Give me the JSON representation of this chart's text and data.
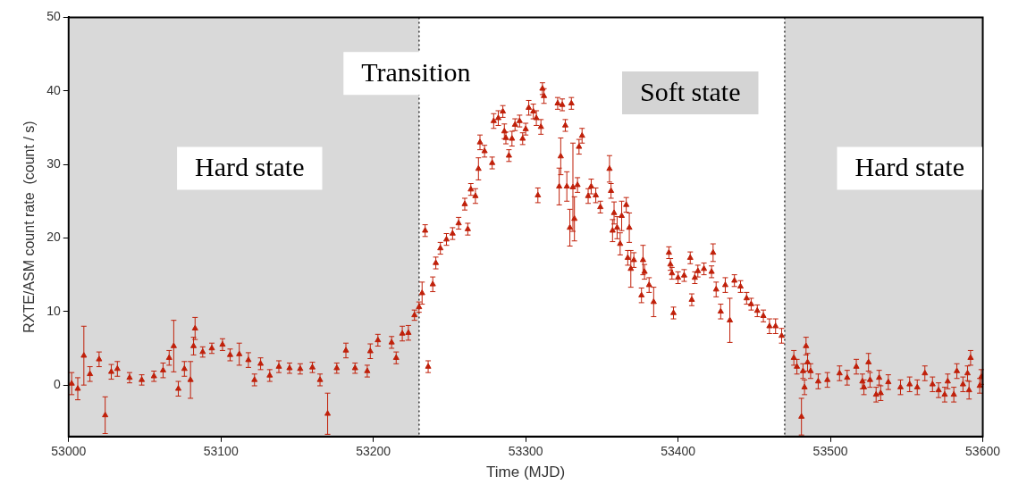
{
  "chart_data": {
    "type": "scatter",
    "xlabel": "Time (MJD)",
    "ylabel": "RXTE/ASM count rate  (count / s)",
    "xlim": [
      53000,
      53600
    ],
    "xticks": [
      53000,
      53100,
      53200,
      53300,
      53400,
      53500,
      53600
    ],
    "ylim": [
      -7,
      50
    ],
    "yticks": [
      0,
      10,
      20,
      30,
      40,
      50
    ],
    "grid": false,
    "marker": "triangle",
    "series": [
      {
        "color": "#c0200a",
        "x": [
          53002,
          53006,
          53010,
          53014,
          53020,
          53024,
          53028,
          53032,
          53040,
          53048,
          53056,
          53062,
          53066,
          53069,
          53072,
          53076,
          53080,
          53082,
          53083,
          53088,
          53094,
          53101,
          53106,
          53112,
          53118,
          53122,
          53126,
          53132,
          53138,
          53145,
          53152,
          53160,
          53165,
          53170,
          53176,
          53182,
          53188,
          53196,
          53198,
          53203,
          53212,
          53215,
          53219,
          53223,
          53227,
          53230,
          53232,
          53234,
          53236,
          53239,
          53241,
          53244,
          53248,
          53252,
          53256,
          53260,
          53262,
          53264,
          53267,
          53269,
          53270,
          53273,
          53278,
          53279,
          53282,
          53285,
          53286,
          53287,
          53289,
          53291,
          53293,
          53296,
          53298,
          53300,
          53302,
          53305,
          53307,
          53308,
          53310,
          53311,
          53312,
          53321,
          53322,
          53323,
          53324,
          53326,
          53327,
          53329,
          53330,
          53331,
          53332,
          53334,
          53335,
          53337,
          53341,
          53343,
          53346,
          53349,
          53355,
          53356,
          53357,
          53358,
          53360,
          53362,
          53363,
          53366,
          53367,
          53368,
          53369,
          53371,
          53376,
          53377,
          53378,
          53381,
          53384,
          53394,
          53395,
          53396,
          53397,
          53400,
          53404,
          53408,
          53409,
          53411,
          53413,
          53417,
          53422,
          53423,
          53425,
          53428,
          53431,
          53434,
          53437,
          53441,
          53445,
          53448,
          53452,
          53456,
          53460,
          53464,
          53468,
          53476,
          53478,
          53481,
          53482,
          53483,
          53484,
          53485,
          53487,
          53492,
          53498,
          53506,
          53511,
          53517,
          53521,
          53522,
          53525,
          53526,
          53530,
          53532,
          53533,
          53538,
          53546,
          53552,
          53557,
          53562,
          53567,
          53571,
          53575,
          53577,
          53581,
          53583,
          53587,
          53590,
          53591,
          53592,
          53598,
          53599
        ],
        "values": [
          0.2,
          -0.5,
          4.0,
          1.5,
          3.5,
          -4.1,
          1.8,
          2.2,
          1.0,
          0.7,
          1.2,
          2.0,
          3.7,
          5.3,
          -0.5,
          2.2,
          0.7,
          5.3,
          7.7,
          4.5,
          5.0,
          5.5,
          4.1,
          4.2,
          3.4,
          0.7,
          2.9,
          1.3,
          2.5,
          2.3,
          2.2,
          2.4,
          0.7,
          -3.9,
          2.3,
          4.7,
          2.3,
          1.9,
          4.6,
          6.1,
          5.8,
          3.7,
          7.0,
          7.1,
          9.5,
          10.6,
          12.5,
          21,
          2.5,
          13.7,
          16.6,
          18.6,
          19.8,
          20.6,
          22.0,
          24.6,
          21.2,
          26.6,
          25.7,
          29.4,
          33,
          31.8,
          30.2,
          35.9,
          36.3,
          37.2,
          34.5,
          33.6,
          31.2,
          33.5,
          35.4,
          35.9,
          33.5,
          34.8,
          37.7,
          37.2,
          36.3,
          25.8,
          35.1,
          40.3,
          39.3,
          38.3,
          27,
          31.1,
          38.1,
          35.3,
          27,
          21.4,
          38.3,
          26.9,
          22.6,
          27.2,
          32.4,
          33.9,
          25.7,
          27,
          25.8,
          24.2,
          29.4,
          26.4,
          21,
          23.4,
          21.4,
          19.2,
          23,
          24.5,
          17.3,
          21.4,
          15.8,
          17,
          12.2,
          17,
          15.4,
          13.6,
          11.3,
          18,
          16.4,
          15.2,
          9.8,
          14.6,
          14.9,
          17.3,
          11.6,
          14.6,
          15.5,
          15.8,
          15.4,
          18,
          13,
          10,
          13.6,
          8.8,
          14.2,
          13.4,
          11.8,
          11,
          10.1,
          9.4,
          8,
          8,
          6.7,
          3.7,
          2.5,
          -4.3,
          1.9,
          -0.3,
          5.3,
          3.1,
          1.9,
          0.5,
          0.7,
          1.6,
          1.0,
          2.5,
          0.5,
          -0.3,
          3.1,
          0.7,
          -1.3,
          1.0,
          -1.1,
          0.4,
          -0.3,
          0.1,
          -0.3,
          1.6,
          0.1,
          -0.7,
          -1.3,
          0.5,
          -1.3,
          1.9,
          0.1,
          1.6,
          -0.7,
          3.7,
          -0.1,
          1.1
        ],
        "errors": [
          1.5,
          1.5,
          4,
          1,
          1,
          2.5,
          1,
          1,
          0.7,
          0.7,
          0.7,
          1,
          1,
          3.5,
          1,
          1,
          2.5,
          1.2,
          1.5,
          0.7,
          0.7,
          0.8,
          0.8,
          1.5,
          1,
          0.8,
          0.8,
          0.8,
          0.8,
          0.7,
          0.7,
          0.7,
          0.8,
          2.8,
          0.7,
          1,
          0.7,
          0.8,
          1,
          0.8,
          0.8,
          0.8,
          1,
          1,
          0.7,
          0.7,
          1.5,
          0.8,
          0.8,
          1,
          0.8,
          0.8,
          0.8,
          0.8,
          0.8,
          0.8,
          0.8,
          0.8,
          1,
          1.5,
          1,
          0.8,
          0.8,
          1,
          1,
          0.8,
          1,
          0.8,
          0.8,
          1,
          0.8,
          0.8,
          0.8,
          0.8,
          1,
          1,
          1,
          1,
          1,
          0.8,
          1,
          0.8,
          2.5,
          2.5,
          0.8,
          0.8,
          2,
          2.5,
          0.8,
          6,
          3,
          1,
          1,
          1,
          1,
          1,
          1,
          0.8,
          1.8,
          1,
          1.5,
          1.5,
          1.5,
          1.5,
          2,
          1,
          1,
          2,
          2.5,
          1,
          1,
          2,
          1,
          1,
          2,
          0.8,
          0.8,
          0.8,
          0.8,
          0.8,
          0.8,
          0.8,
          0.8,
          0.8,
          0.8,
          0.8,
          0.8,
          1.2,
          1,
          1,
          1,
          3,
          0.8,
          0.8,
          0.8,
          0.8,
          0.8,
          0.8,
          1,
          1,
          1,
          1,
          1,
          2.5,
          1,
          1,
          1.2,
          1.2,
          1,
          1,
          1,
          1,
          1,
          1,
          1,
          1,
          1.2,
          1,
          1,
          1,
          1,
          1,
          1,
          1,
          1,
          1,
          1,
          1,
          1,
          1,
          1,
          1,
          1,
          1,
          1.2,
          1,
          1,
          1
        ]
      }
    ],
    "bands": [
      {
        "axis": "x",
        "from": 53000,
        "to": 53230,
        "color": "#d9d9d9"
      },
      {
        "axis": "x",
        "from": 53470,
        "to": 53600,
        "color": "#d9d9d9"
      }
    ],
    "ref_lines": [
      {
        "axis": "x",
        "value": 53230,
        "color": "#333333",
        "line_style": "dotted"
      },
      {
        "axis": "x",
        "value": 53470,
        "color": "#333333",
        "line_style": "dotted"
      }
    ],
    "annotations": [
      "Hard state",
      "Transition",
      "Soft state",
      "Hard state"
    ]
  }
}
